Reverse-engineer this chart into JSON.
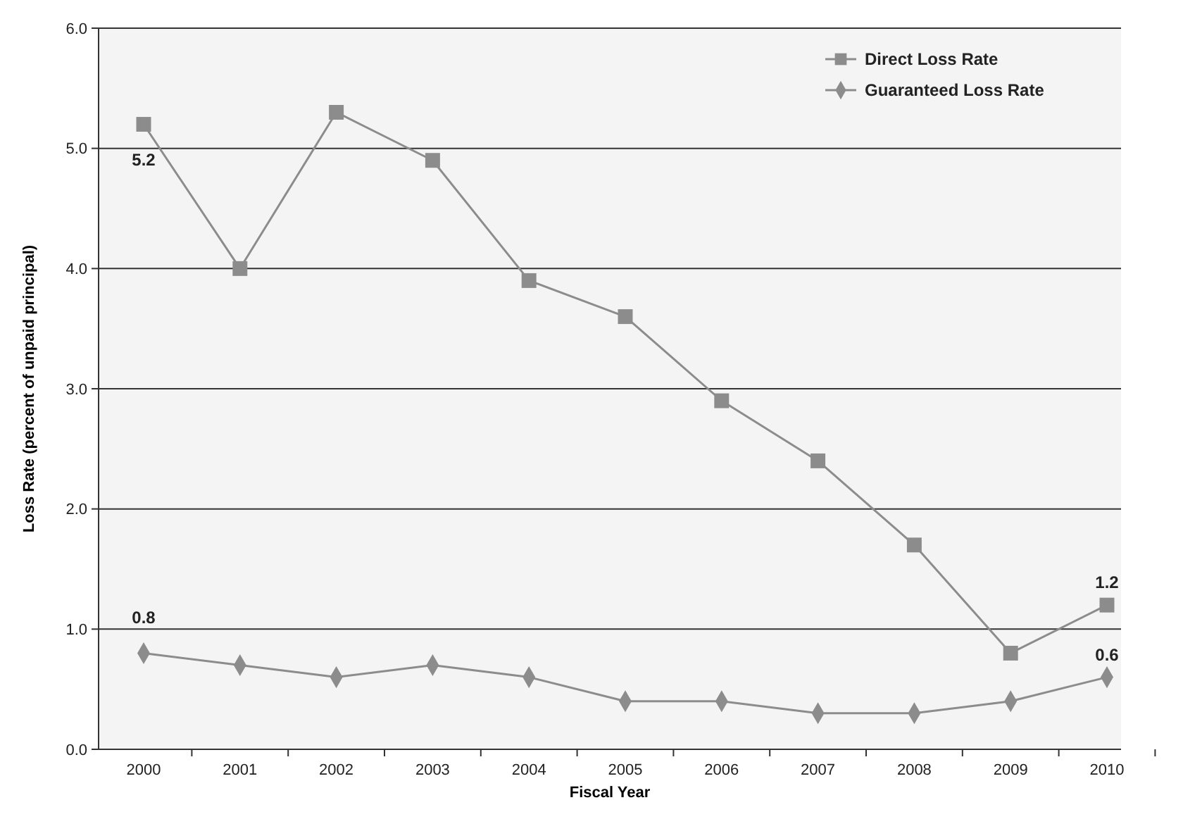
{
  "chart_data": {
    "type": "line",
    "xlabel": "Fiscal Year",
    "ylabel": "Loss Rate (percent of unpaid principal)",
    "categories": [
      "2000",
      "2001",
      "2002",
      "2003",
      "2004",
      "2005",
      "2006",
      "2007",
      "2008",
      "2009",
      "2010"
    ],
    "series": [
      {
        "name": "Direct Loss Rate",
        "color": "#8c8c8c",
        "marker": "square",
        "values": [
          5.2,
          4.0,
          5.3,
          4.9,
          3.9,
          3.6,
          2.9,
          2.4,
          1.7,
          0.8,
          1.2
        ],
        "value_labels": [
          "5.2",
          null,
          null,
          null,
          null,
          null,
          null,
          null,
          null,
          null,
          "1.2"
        ]
      },
      {
        "name": "Guaranteed Loss Rate",
        "color": "#8c8c8c",
        "marker": "diamond",
        "values": [
          0.8,
          0.7,
          0.6,
          0.7,
          0.6,
          0.4,
          0.4,
          0.3,
          0.3,
          0.4,
          0.6
        ],
        "value_labels": [
          "0.8",
          null,
          null,
          null,
          null,
          null,
          null,
          null,
          null,
          null,
          "0.6"
        ]
      }
    ],
    "ylim": [
      0,
      6
    ],
    "yticks": [
      {
        "value": 0,
        "label": "0.0"
      },
      {
        "value": 1,
        "label": "1.0"
      },
      {
        "value": 2,
        "label": "2.0"
      },
      {
        "value": 3,
        "label": "3.0"
      },
      {
        "value": 4,
        "label": "4.0"
      },
      {
        "value": 5,
        "label": "5.0"
      },
      {
        "value": 6,
        "label": "6.0"
      }
    ],
    "grid": "y",
    "legend": "top right",
    "line_style": "solid"
  }
}
